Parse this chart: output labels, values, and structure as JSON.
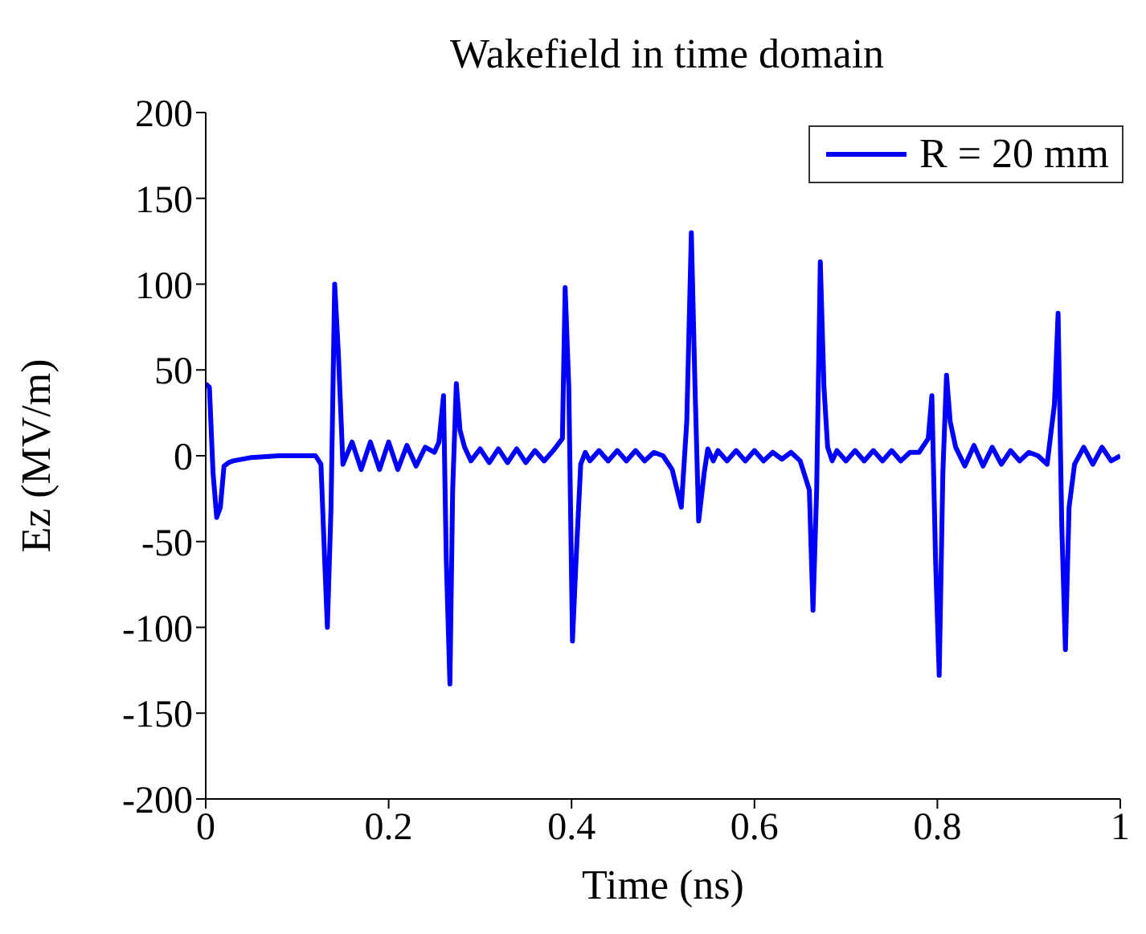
{
  "chart_data": {
    "type": "line",
    "title": "Wakefield in time domain",
    "xlabel": "Time (ns)",
    "ylabel": "Ez (MV/m)",
    "x": [
      0,
      0.004,
      0.008,
      0.012,
      0.016,
      0.02,
      0.025,
      0.03,
      0.05,
      0.08,
      0.1,
      0.12,
      0.126,
      0.13,
      0.133,
      0.137,
      0.141,
      0.145,
      0.15,
      0.16,
      0.17,
      0.18,
      0.19,
      0.2,
      0.21,
      0.22,
      0.23,
      0.24,
      0.25,
      0.255,
      0.26,
      0.263,
      0.267,
      0.27,
      0.274,
      0.278,
      0.283,
      0.29,
      0.3,
      0.31,
      0.32,
      0.33,
      0.34,
      0.35,
      0.36,
      0.37,
      0.38,
      0.39,
      0.393,
      0.397,
      0.401,
      0.405,
      0.41,
      0.415,
      0.42,
      0.43,
      0.44,
      0.45,
      0.46,
      0.47,
      0.48,
      0.49,
      0.5,
      0.51,
      0.52,
      0.526,
      0.531,
      0.535,
      0.539,
      0.545,
      0.549,
      0.555,
      0.56,
      0.57,
      0.58,
      0.59,
      0.6,
      0.61,
      0.62,
      0.63,
      0.64,
      0.65,
      0.66,
      0.664,
      0.668,
      0.672,
      0.676,
      0.68,
      0.685,
      0.69,
      0.7,
      0.71,
      0.72,
      0.73,
      0.74,
      0.75,
      0.76,
      0.77,
      0.78,
      0.79,
      0.794,
      0.798,
      0.802,
      0.806,
      0.81,
      0.814,
      0.82,
      0.83,
      0.84,
      0.85,
      0.86,
      0.87,
      0.88,
      0.89,
      0.9,
      0.91,
      0.92,
      0.928,
      0.932,
      0.936,
      0.94,
      0.944,
      0.95,
      0.96,
      0.97,
      0.98,
      0.99,
      1
    ],
    "series": [
      {
        "name": "R = 20 mm",
        "color": "#0000ff",
        "values": [
          42,
          40,
          -10,
          -36,
          -30,
          -6,
          -4,
          -3,
          -1,
          0,
          0,
          0,
          -5,
          -60,
          -100,
          -30,
          100,
          60,
          -5,
          8,
          -8,
          8,
          -8,
          8,
          -8,
          6,
          -6,
          5,
          2,
          8,
          35,
          -60,
          -133,
          -20,
          42,
          15,
          5,
          -3,
          4,
          -4,
          4,
          -4,
          4,
          -4,
          3,
          -3,
          3,
          10,
          98,
          40,
          -108,
          -60,
          -5,
          2,
          -3,
          3,
          -3,
          3,
          -3,
          3,
          -3,
          2,
          0,
          -8,
          -30,
          20,
          130,
          40,
          -38,
          -10,
          4,
          -3,
          3,
          -3,
          3,
          -3,
          3,
          -3,
          2,
          -2,
          2,
          -3,
          -20,
          -90,
          -20,
          113,
          40,
          5,
          -3,
          3,
          -3,
          3,
          -3,
          3,
          -3,
          3,
          -3,
          2,
          2,
          10,
          35,
          -60,
          -128,
          -10,
          47,
          20,
          5,
          -6,
          6,
          -6,
          5,
          -5,
          3,
          -3,
          2,
          0,
          -5,
          30,
          83,
          -40,
          -113,
          -30,
          -5,
          5,
          -5,
          5,
          -3,
          0
        ]
      }
    ],
    "xlim": [
      0,
      1
    ],
    "xticks": [
      0,
      0.2,
      0.4,
      0.6,
      0.8,
      1
    ],
    "ylim": [
      -200,
      200
    ],
    "yticks": [
      -200,
      -150,
      -100,
      -50,
      0,
      50,
      100,
      150,
      200
    ],
    "grid": false,
    "legend": "top right",
    "marker": "none",
    "line_style": "solid"
  }
}
